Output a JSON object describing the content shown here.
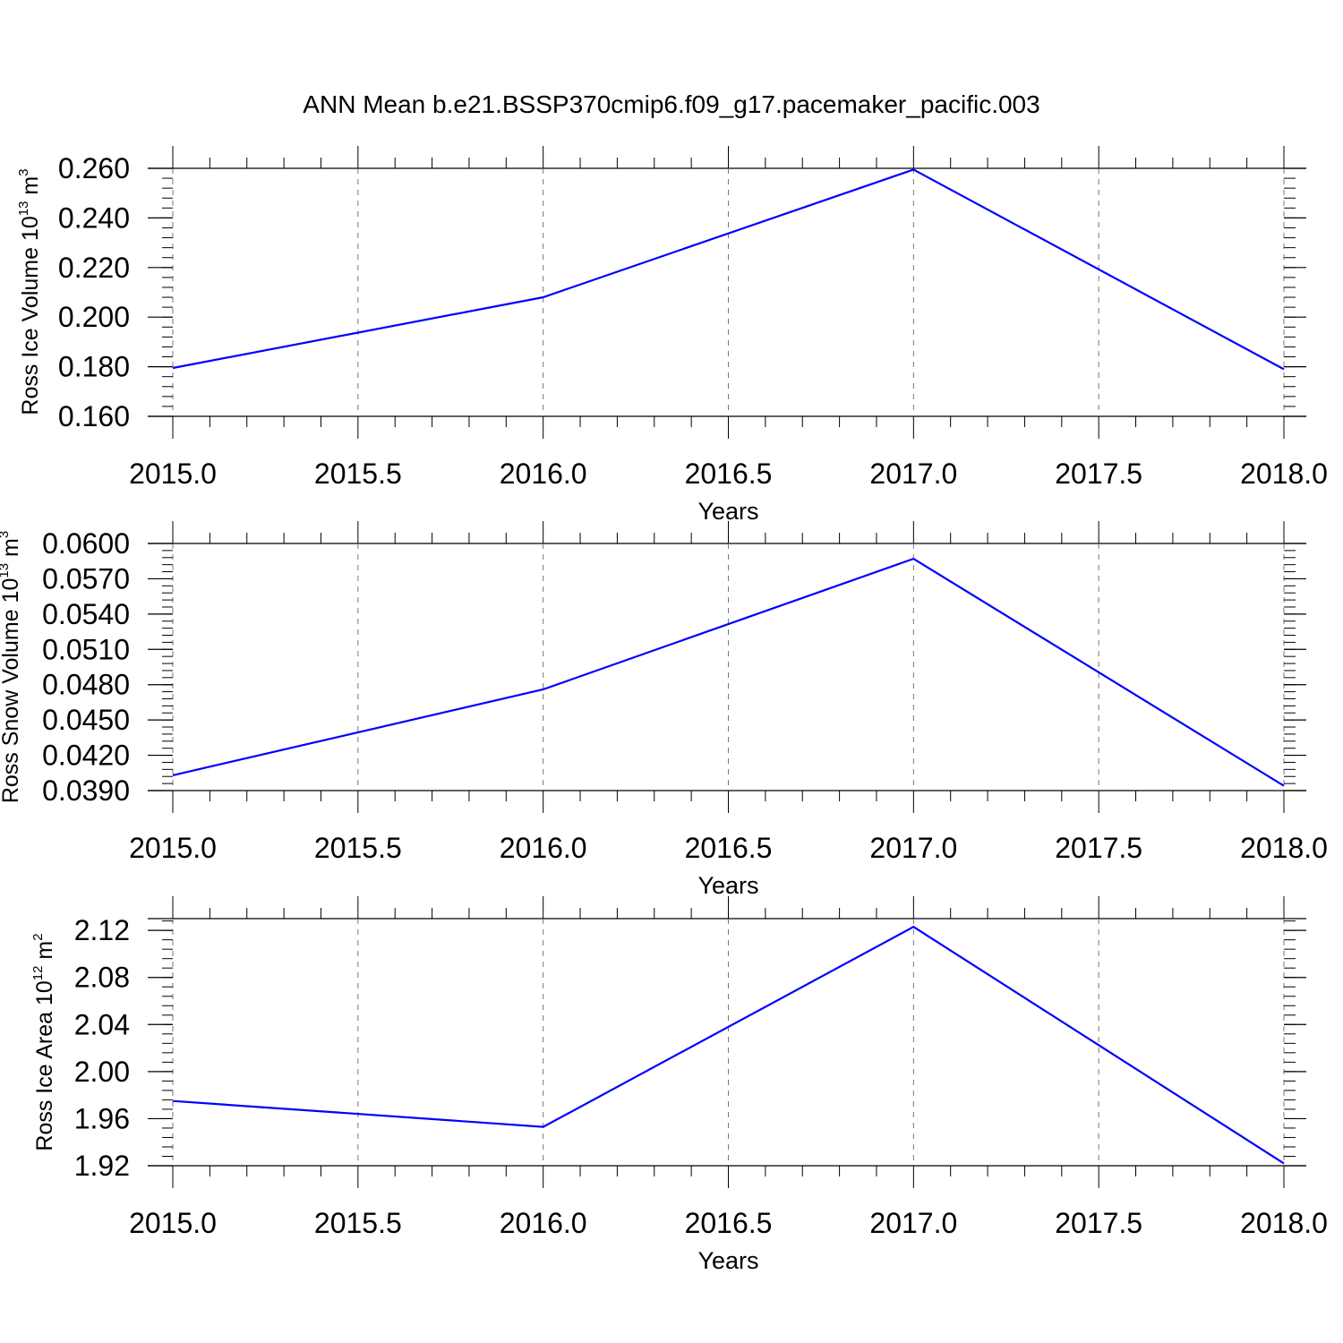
{
  "title": "ANN Mean b.e21.BSSP370cmip6.f09_g17.pacemaker_pacific.003",
  "chart_data": [
    {
      "type": "line",
      "xlabel": "Years",
      "ylabel": {
        "text": "Ross Ice Volume 10",
        "exp": "13",
        "unit": " m",
        "unit_exp": "3"
      },
      "xlim": [
        2015.0,
        2018.0
      ],
      "ylim": [
        0.16,
        0.26
      ],
      "xticks": [
        "2015.0",
        "2015.5",
        "2016.0",
        "2016.5",
        "2017.0",
        "2017.5",
        "2018.0"
      ],
      "yticks": [
        "0.160",
        "0.180",
        "0.200",
        "0.220",
        "0.240",
        "0.260"
      ],
      "grid": "vertical dashed",
      "series": [
        {
          "color": "#0000ff",
          "x": [
            2015.0,
            2016.0,
            2017.0,
            2018.0
          ],
          "y": [
            0.1795,
            0.208,
            0.2595,
            0.179
          ]
        }
      ]
    },
    {
      "type": "line",
      "xlabel": "Years",
      "ylabel": {
        "text": "Ross Snow Volume 10",
        "exp": "13",
        "unit": " m",
        "unit_exp": "3"
      },
      "xlim": [
        2015.0,
        2018.0
      ],
      "ylim": [
        0.039,
        0.06
      ],
      "xticks": [
        "2015.0",
        "2015.5",
        "2016.0",
        "2016.5",
        "2017.0",
        "2017.5",
        "2018.0"
      ],
      "yticks": [
        "0.0390",
        "0.0420",
        "0.0450",
        "0.0480",
        "0.0510",
        "0.0540",
        "0.0570",
        "0.0600"
      ],
      "grid": "vertical dashed",
      "series": [
        {
          "color": "#0000ff",
          "x": [
            2015.0,
            2016.0,
            2017.0,
            2018.0
          ],
          "y": [
            0.0403,
            0.0476,
            0.0587,
            0.0394
          ]
        }
      ]
    },
    {
      "type": "line",
      "xlabel": "Years",
      "ylabel": {
        "text": "Ross Ice Area 10",
        "exp": "12",
        "unit": " m",
        "unit_exp": "2"
      },
      "xlim": [
        2015.0,
        2018.0
      ],
      "ylim": [
        1.92,
        2.13
      ],
      "xticks": [
        "2015.0",
        "2015.5",
        "2016.0",
        "2016.5",
        "2017.0",
        "2017.5",
        "2018.0"
      ],
      "yticks": [
        "1.92",
        "1.96",
        "2.00",
        "2.04",
        "2.08",
        "2.12"
      ],
      "grid": "vertical dashed",
      "series": [
        {
          "color": "#0000ff",
          "x": [
            2015.0,
            2016.0,
            2017.0,
            2018.0
          ],
          "y": [
            1.975,
            1.953,
            2.123,
            1.922
          ]
        }
      ]
    }
  ]
}
